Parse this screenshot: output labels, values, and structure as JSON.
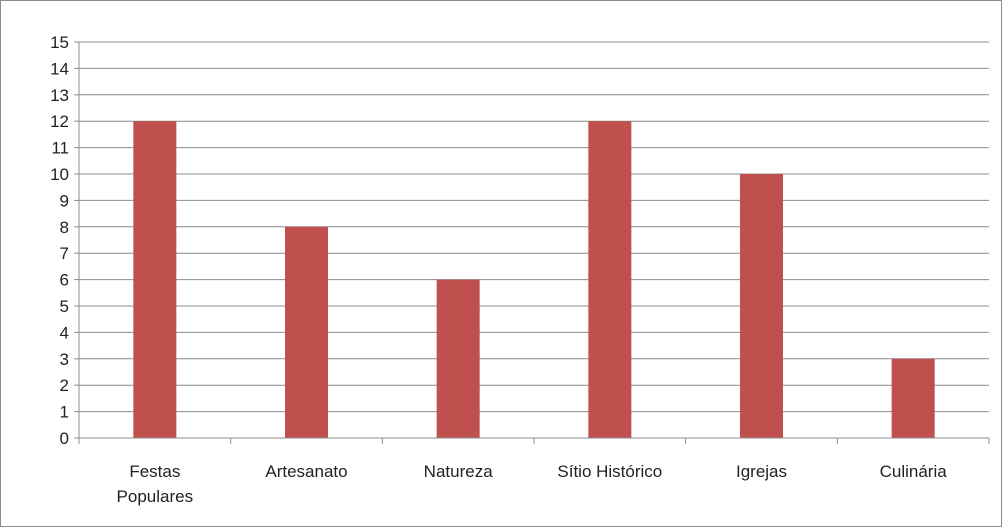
{
  "chart_data": {
    "type": "bar",
    "categories": [
      [
        "Festas",
        "Populares"
      ],
      [
        "Artesanato"
      ],
      [
        "Natureza"
      ],
      [
        "Sítio Histórico"
      ],
      [
        "Igrejas"
      ],
      [
        "Culinária"
      ]
    ],
    "values": [
      12,
      8,
      6,
      12,
      10,
      3
    ],
    "title": "",
    "xlabel": "",
    "ylabel": "",
    "ylim": [
      0,
      15
    ],
    "yticks": [
      "0",
      "1",
      "2",
      "3",
      "4",
      "5",
      "6",
      "7",
      "8",
      "9",
      "10",
      "11",
      "12",
      "13",
      "14",
      "15"
    ],
    "grid": true,
    "legend": "none",
    "bar_color": "#c0504d",
    "grid_color": "#8c8c8c"
  }
}
